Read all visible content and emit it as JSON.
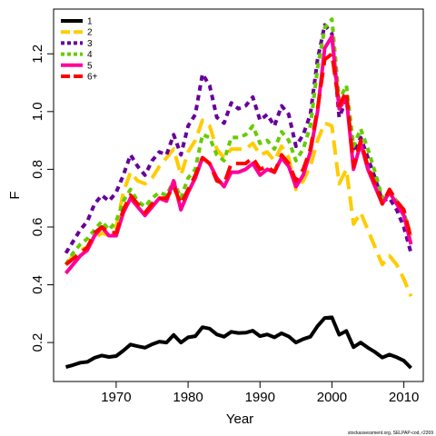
{
  "chart_data": {
    "type": "line",
    "xlabel": "Year",
    "ylabel": "F",
    "xlim": [
      1961.3,
      2012.7
    ],
    "ylim": [
      0.065,
      1.355
    ],
    "xticks": [
      1970,
      1980,
      1990,
      2000,
      2010
    ],
    "yticks": [
      0.2,
      0.4,
      0.6,
      0.8,
      1.0,
      1.2
    ],
    "ytick_labels": [
      "0.2",
      "0.4",
      "0.6",
      "0.8",
      "1.0",
      "1.2"
    ],
    "grid": false,
    "legend_position": "top-left",
    "caption": "stockassessment.org, SELPAP-cod, r2269",
    "x": [
      1963,
      1964,
      1965,
      1966,
      1967,
      1968,
      1969,
      1970,
      1971,
      1972,
      1973,
      1974,
      1975,
      1976,
      1977,
      1978,
      1979,
      1980,
      1981,
      1982,
      1983,
      1984,
      1985,
      1986,
      1987,
      1988,
      1989,
      1990,
      1991,
      1992,
      1993,
      1994,
      1995,
      1996,
      1997,
      1998,
      1999,
      2000,
      2001,
      2002,
      2003,
      2004,
      2005,
      2006,
      2007,
      2008,
      2009,
      2010,
      2011
    ],
    "series": [
      {
        "name": "1",
        "color": "#000000",
        "dash": "solid",
        "values": [
          0.115,
          0.122,
          0.13,
          0.133,
          0.147,
          0.155,
          0.15,
          0.153,
          0.172,
          0.193,
          0.187,
          0.182,
          0.194,
          0.203,
          0.2,
          0.226,
          0.2,
          0.218,
          0.222,
          0.253,
          0.248,
          0.228,
          0.22,
          0.237,
          0.233,
          0.234,
          0.241,
          0.222,
          0.228,
          0.218,
          0.232,
          0.221,
          0.2,
          0.212,
          0.22,
          0.257,
          0.285,
          0.287,
          0.227,
          0.24,
          0.184,
          0.2,
          0.182,
          0.167,
          0.148,
          0.158,
          0.149,
          0.137,
          0.112
        ]
      },
      {
        "name": "2",
        "color": "#FFCC00",
        "dash": "long",
        "values": [
          0.47,
          0.5,
          0.52,
          0.53,
          0.56,
          0.58,
          0.57,
          0.6,
          0.72,
          0.79,
          0.76,
          0.75,
          0.77,
          0.81,
          0.84,
          0.87,
          0.78,
          0.86,
          0.9,
          0.97,
          0.95,
          0.87,
          0.84,
          0.87,
          0.87,
          0.87,
          0.89,
          0.85,
          0.86,
          0.83,
          0.88,
          0.84,
          0.73,
          0.76,
          0.81,
          0.9,
          0.96,
          0.95,
          0.75,
          0.8,
          0.61,
          0.65,
          0.59,
          0.53,
          0.47,
          0.5,
          0.47,
          0.42,
          0.36
        ]
      },
      {
        "name": "3",
        "color": "#660099",
        "dash": "short",
        "values": [
          0.51,
          0.55,
          0.59,
          0.62,
          0.68,
          0.71,
          0.69,
          0.72,
          0.78,
          0.85,
          0.81,
          0.78,
          0.83,
          0.86,
          0.85,
          0.92,
          0.85,
          0.95,
          0.99,
          1.13,
          1.09,
          0.98,
          0.96,
          1.03,
          1.01,
          1.02,
          1.05,
          0.97,
          0.99,
          0.95,
          1.02,
          0.99,
          0.88,
          0.92,
          0.99,
          1.18,
          1.3,
          1.27,
          0.98,
          1.04,
          0.86,
          0.91,
          0.84,
          0.77,
          0.69,
          0.7,
          0.66,
          0.6,
          0.51
        ]
      },
      {
        "name": "4",
        "color": "#66CC00",
        "dash": "short",
        "values": [
          0.47,
          0.51,
          0.54,
          0.56,
          0.59,
          0.62,
          0.59,
          0.62,
          0.69,
          0.73,
          0.69,
          0.67,
          0.7,
          0.72,
          0.71,
          0.76,
          0.7,
          0.77,
          0.8,
          0.92,
          0.91,
          0.85,
          0.83,
          0.91,
          0.91,
          0.92,
          0.95,
          0.89,
          0.9,
          0.87,
          0.93,
          0.9,
          0.83,
          0.87,
          0.95,
          1.15,
          1.29,
          1.32,
          1.04,
          1.09,
          0.88,
          0.94,
          0.87,
          0.79,
          0.7,
          0.72,
          0.69,
          0.65,
          0.57
        ]
      },
      {
        "name": "5",
        "color": "#FF0099",
        "dash": "solid",
        "values": [
          0.44,
          0.47,
          0.5,
          0.52,
          0.57,
          0.6,
          0.57,
          0.57,
          0.65,
          0.7,
          0.67,
          0.64,
          0.67,
          0.7,
          0.69,
          0.76,
          0.66,
          0.72,
          0.77,
          0.84,
          0.82,
          0.77,
          0.74,
          0.79,
          0.79,
          0.8,
          0.82,
          0.78,
          0.8,
          0.79,
          0.84,
          0.81,
          0.74,
          0.78,
          0.86,
          1.0,
          1.22,
          1.26,
          1.01,
          1.05,
          0.8,
          0.89,
          0.8,
          0.74,
          0.68,
          0.72,
          0.68,
          0.64,
          0.54
        ]
      },
      {
        "name": "6+",
        "color": "#FF0000",
        "dash": "long",
        "values": [
          0.47,
          0.49,
          0.51,
          0.53,
          0.58,
          0.6,
          0.58,
          0.58,
          0.66,
          0.71,
          0.68,
          0.65,
          0.68,
          0.7,
          0.7,
          0.74,
          0.68,
          0.73,
          0.78,
          0.84,
          0.82,
          0.76,
          0.75,
          0.82,
          0.82,
          0.82,
          0.84,
          0.8,
          0.81,
          0.79,
          0.85,
          0.82,
          0.76,
          0.8,
          0.87,
          1.01,
          1.18,
          1.2,
          1.02,
          1.07,
          0.81,
          0.9,
          0.81,
          0.75,
          0.68,
          0.73,
          0.69,
          0.66,
          0.56
        ]
      }
    ]
  }
}
